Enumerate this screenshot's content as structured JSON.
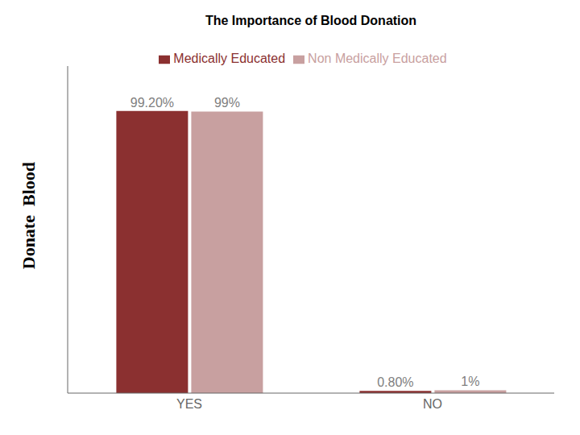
{
  "chart_data": {
    "type": "bar",
    "title": "The Importance of Blood Donation",
    "annotations": [
      "Donate  Blood"
    ],
    "categories": [
      "YES",
      "NO"
    ],
    "series": [
      {
        "name": "Medically Educated",
        "color": "#8b3030",
        "values": [
          99.2,
          0.8
        ],
        "value_labels": [
          "99.20%",
          "0.80%"
        ]
      },
      {
        "name": "Non Medically Educated",
        "color": "#c8a0a0",
        "values": [
          99,
          1
        ],
        "value_labels": [
          "99%",
          "1%"
        ]
      }
    ],
    "ylim": [
      0,
      115
    ],
    "data_labels": true,
    "tick_labels": "x",
    "legend": "top"
  }
}
